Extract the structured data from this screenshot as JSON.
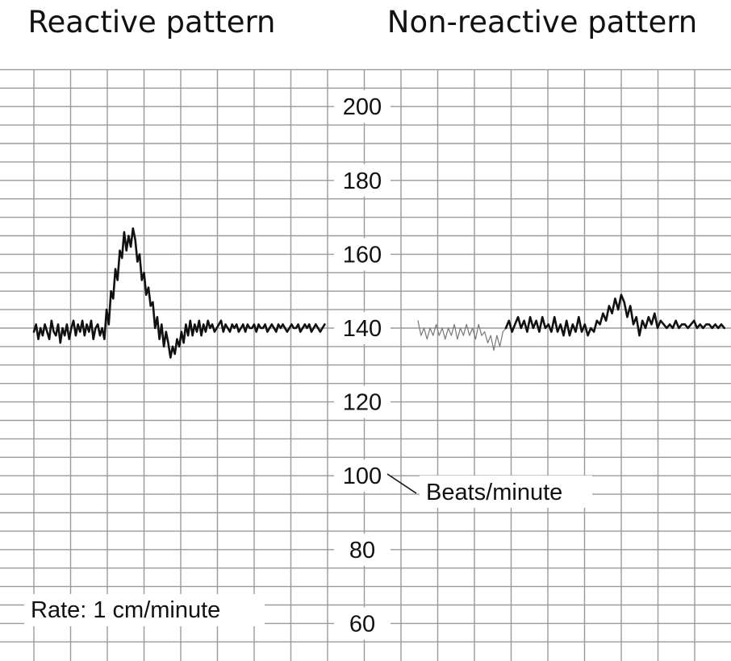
{
  "chart_data": [
    {
      "type": "line",
      "title": "Reactive pattern",
      "ylabel": "Beats/minute",
      "ylim": [
        55,
        216
      ],
      "yticks": [
        200,
        180,
        160,
        140,
        120,
        100,
        80,
        60
      ],
      "grid": true,
      "annotations": [
        "Rate: 1 cm/minute"
      ],
      "x": [
        0,
        0.3,
        0.6,
        0.9,
        1.2,
        1.5,
        1.8,
        2.1,
        2.4,
        2.7,
        3.0,
        3.3,
        3.6,
        3.9,
        4.2,
        4.5,
        4.8,
        5.1,
        5.4,
        5.7,
        6.0,
        6.3,
        6.6,
        6.9,
        7.2,
        7.5,
        7.8,
        8.1,
        8.4,
        8.7,
        9.0,
        9.3,
        9.6,
        9.9,
        10.2,
        10.5,
        10.8,
        11.1,
        11.4,
        11.7,
        12.0,
        12.3,
        12.6,
        12.9,
        13.2,
        13.5,
        13.8,
        14.1,
        14.4,
        14.7,
        15.0,
        15.3,
        15.6,
        15.9,
        16.2,
        16.5,
        16.8,
        17.1,
        17.4,
        17.7,
        18.0,
        18.3,
        18.6,
        18.9,
        19.2,
        19.5,
        19.8,
        20.1,
        20.4,
        20.7,
        21.0,
        21.3,
        21.6,
        21.9,
        22.2,
        22.5,
        22.8,
        23.1,
        23.4,
        23.7,
        24.0,
        24.3,
        24.6,
        24.9,
        25.2,
        25.5,
        25.8,
        26.1,
        26.4,
        26.7,
        27.0,
        27.3,
        27.6,
        27.9,
        28.2,
        28.5,
        28.8,
        29.1,
        29.4,
        29.7,
        30.0,
        30.3,
        30.6,
        30.9,
        31.2,
        31.5,
        31.8,
        32.1,
        32.4,
        32.7,
        33.0,
        33.3,
        33.6,
        33.9,
        34.2,
        34.5,
        34.8,
        35.1,
        35.4,
        35.7,
        36.0,
        36.3,
        36.6,
        36.9,
        37.2,
        37.5,
        37.8,
        38.1,
        38.4,
        38.7,
        39.0,
        39.3,
        39.6
      ],
      "series": [
        {
          "values": [
            139,
            141,
            137,
            140,
            138,
            141,
            139,
            137,
            142,
            139,
            138,
            141,
            136,
            140,
            138,
            141,
            137,
            140,
            142,
            138,
            141,
            139,
            142,
            138,
            141,
            139,
            142,
            137,
            140,
            141,
            138,
            140,
            137,
            145,
            141,
            150,
            148,
            156,
            153,
            161,
            159,
            166,
            161,
            165,
            162,
            167,
            164,
            158,
            160,
            153,
            155,
            149,
            151,
            146,
            147,
            140,
            143,
            137,
            141,
            135,
            139,
            136,
            132,
            135,
            133,
            137,
            135,
            139,
            136,
            141,
            138,
            142,
            138,
            141,
            139,
            142,
            138,
            141,
            139,
            142,
            140,
            141,
            139,
            140,
            141,
            142,
            139,
            141,
            140,
            139,
            141,
            140,
            141,
            139,
            140,
            141,
            139,
            141,
            140,
            140,
            141,
            139,
            141,
            140,
            140,
            141,
            139,
            140,
            141,
            140,
            139,
            141,
            140,
            141,
            140,
            139,
            140,
            141,
            140,
            140,
            141,
            139,
            140,
            141,
            140,
            141,
            139,
            140,
            141,
            140,
            139,
            140,
            141
          ]
        }
      ]
    },
    {
      "type": "line",
      "title": "Non-reactive pattern",
      "ylabel": "Beats/minute",
      "ylim": [
        55,
        216
      ],
      "grid": true,
      "x": [
        0,
        0.4,
        0.8,
        1.2,
        1.6,
        2.0,
        2.4,
        2.8,
        3.2,
        3.6,
        4.0,
        4.4,
        4.8,
        5.2,
        5.6,
        6.0,
        6.4,
        6.8,
        7.2,
        7.6,
        8.0,
        8.4,
        8.8,
        9.2,
        9.6,
        10.0,
        10.4,
        10.8,
        11.2,
        11.6,
        12.0,
        12.4,
        12.8,
        13.2,
        13.6,
        14.0,
        14.4,
        14.8,
        15.2,
        15.6,
        16.0,
        16.4,
        16.8,
        17.2,
        17.6,
        18.0,
        18.4,
        18.8,
        19.2,
        19.6,
        20.0,
        20.4,
        20.8,
        21.2,
        21.6,
        22.0,
        22.4,
        22.8,
        23.2,
        23.6,
        24.0,
        24.4,
        24.8,
        25.2,
        25.6,
        26.0,
        26.4,
        26.8,
        27.2,
        27.6,
        28.0,
        28.4,
        28.8,
        29.2,
        29.6,
        30.0,
        30.4,
        30.8,
        31.2,
        31.6,
        32.0,
        32.4,
        32.8,
        33.2,
        33.6,
        34.0,
        34.4,
        34.8,
        35.2,
        35.6,
        36.0,
        36.4,
        36.8,
        37.2,
        37.6,
        38.0,
        38.4,
        38.8,
        39.2,
        39.6,
        40.0,
        40.4
      ],
      "series": [
        {
          "values": [
            142,
            138,
            140,
            137,
            140,
            138,
            141,
            138,
            140,
            137,
            140,
            138,
            141,
            137,
            140,
            138,
            141,
            138,
            140,
            137,
            141,
            138,
            139,
            136,
            138,
            134,
            138,
            135,
            139,
            140,
            142,
            139,
            141,
            143,
            140,
            142,
            139,
            143,
            140,
            142,
            139,
            143,
            140,
            141,
            139,
            143,
            139,
            141,
            138,
            142,
            138,
            141,
            139,
            143,
            139,
            141,
            138,
            140,
            139,
            142,
            141,
            144,
            142,
            146,
            144,
            148,
            145,
            149,
            147,
            143,
            146,
            141,
            143,
            138,
            142,
            140,
            143,
            141,
            144,
            140,
            142,
            141,
            140,
            141,
            140,
            142,
            140,
            141,
            141,
            140,
            141,
            142,
            140,
            141,
            140,
            141,
            141,
            140,
            141,
            140,
            141,
            140
          ]
        }
      ]
    }
  ]
}
